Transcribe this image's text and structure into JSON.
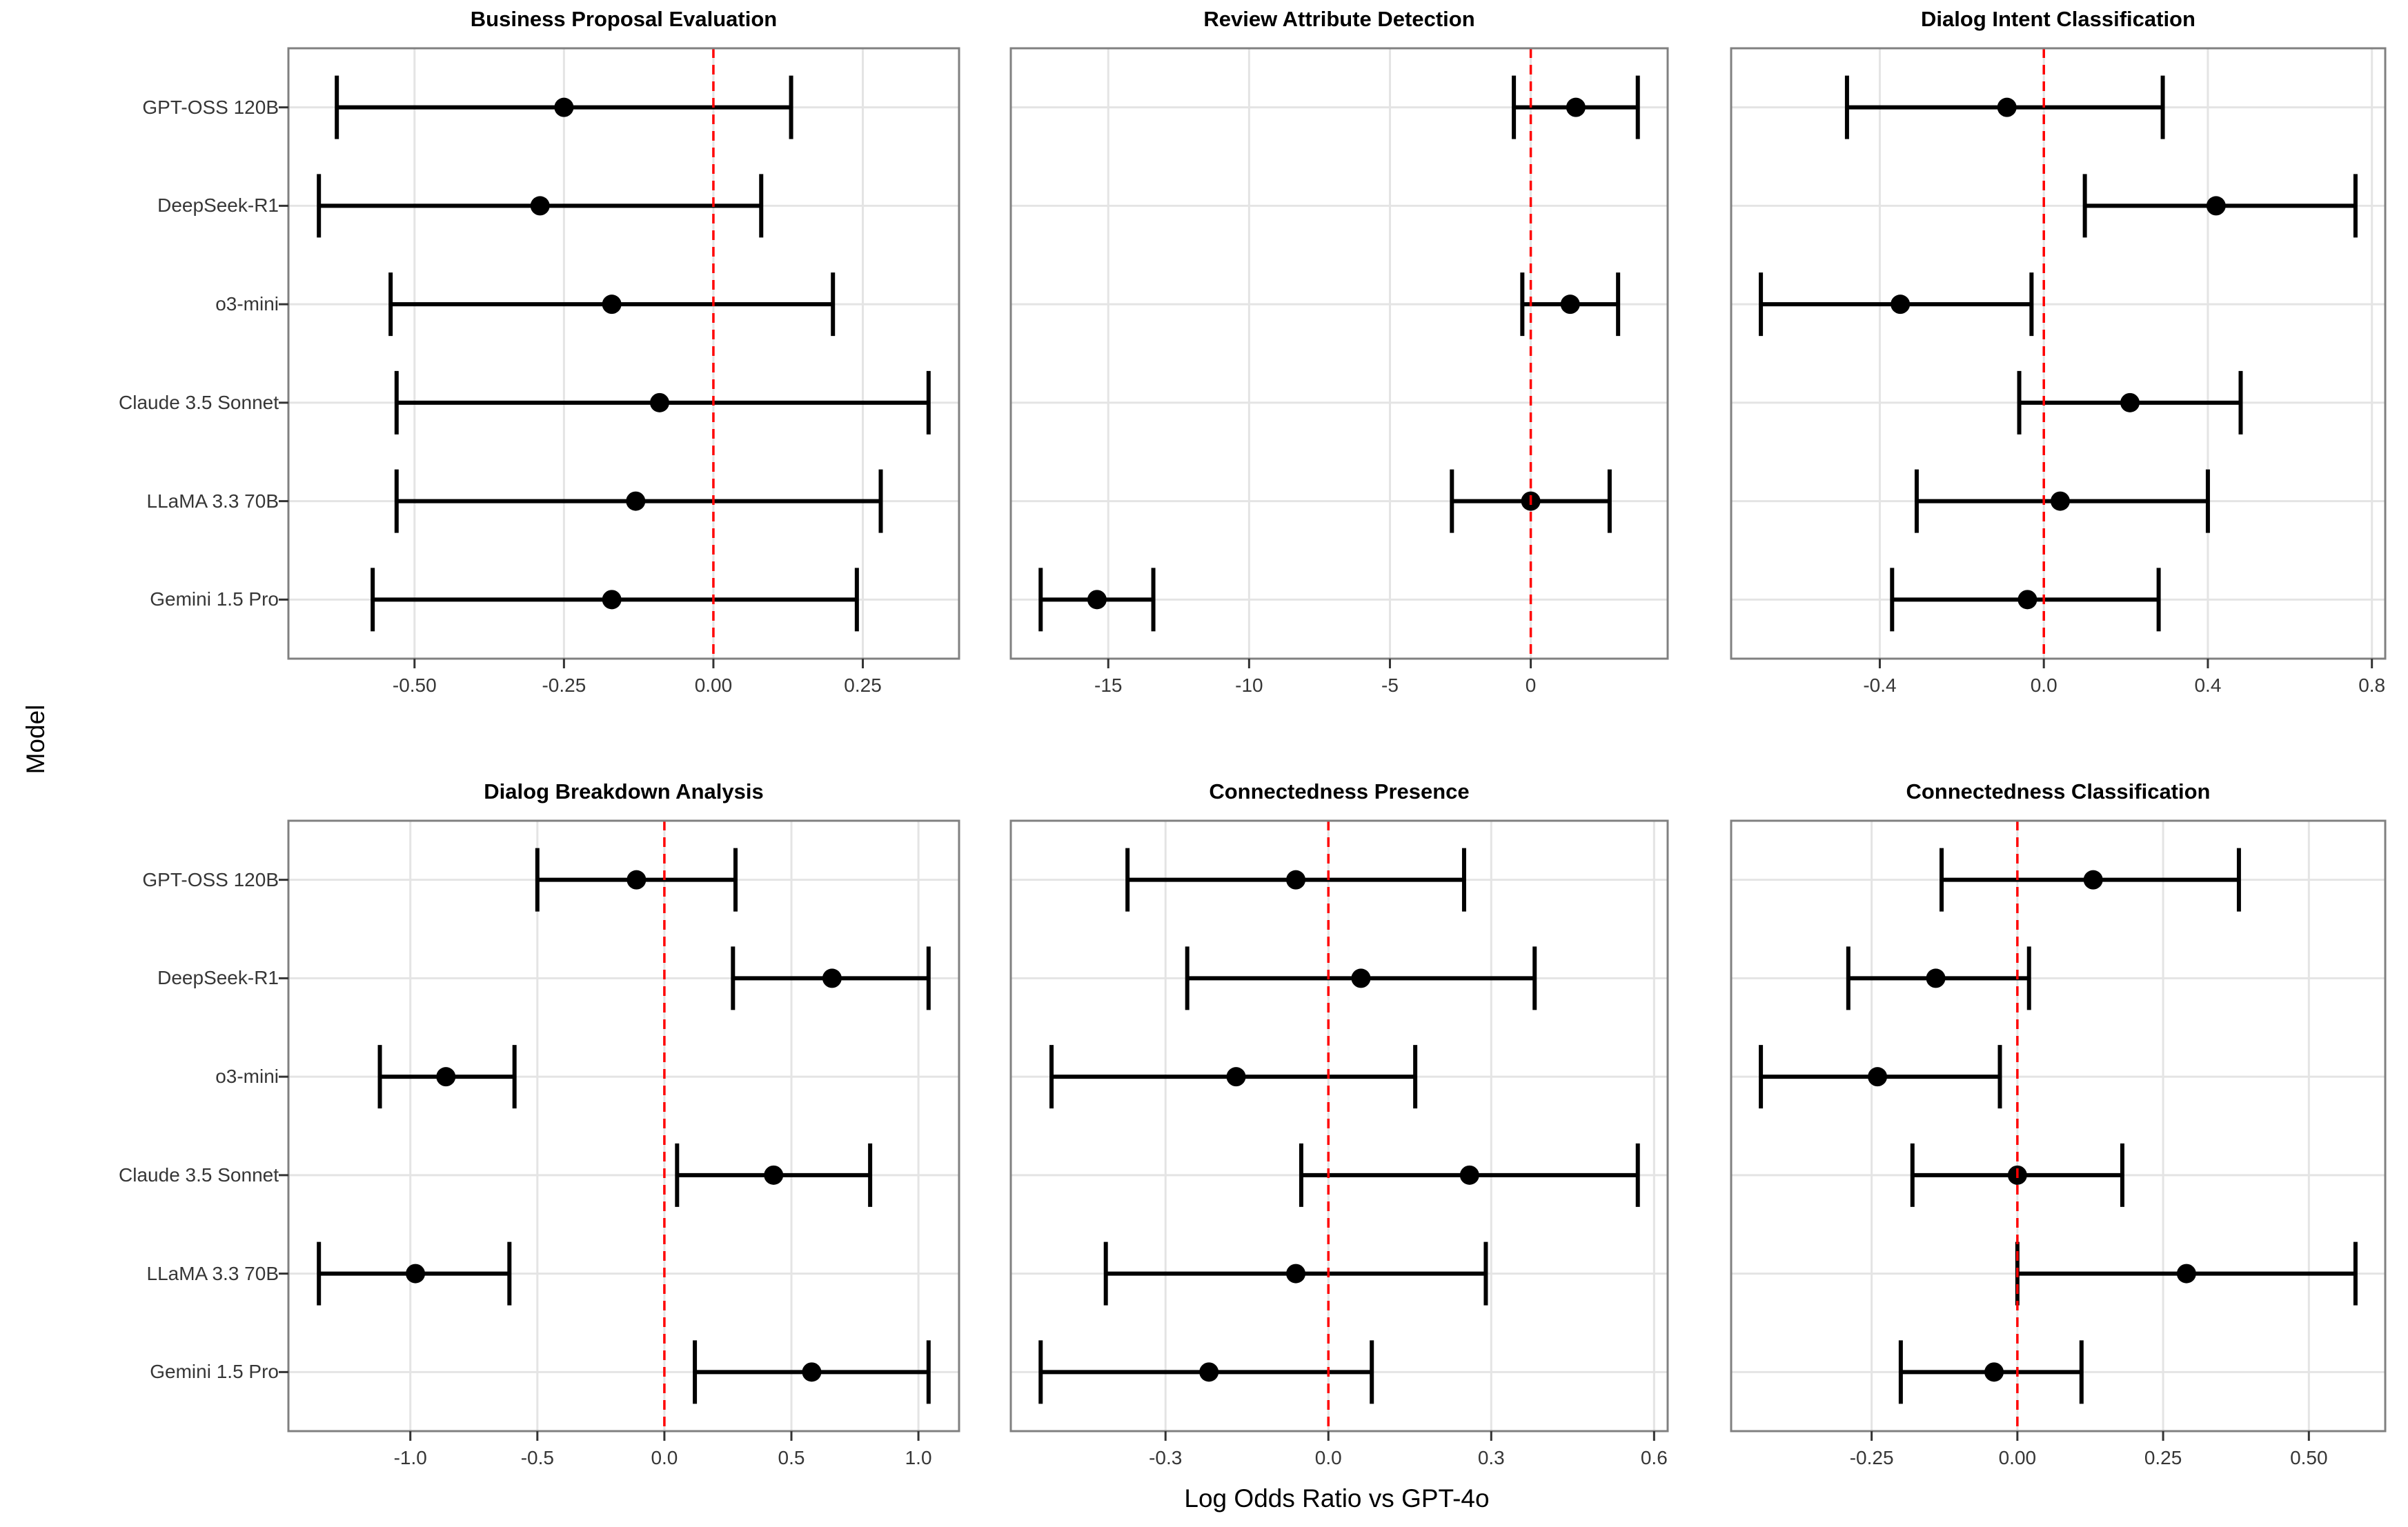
{
  "figure": {
    "kind": "faceted-forest-plot",
    "facet_rows": 2,
    "facet_cols": 3
  },
  "colors": {
    "reference_line": "#FF0000",
    "marker": "#000000",
    "errorbar": "#000000",
    "gridline": "#E4E4E4",
    "panel_border": "#808080",
    "tick_mark": "#333333",
    "tick_text": "#363636",
    "title_text": "#000000"
  },
  "chart_data": {
    "type": "scatter",
    "subtype": "forest-errorbar",
    "xlabel": "Log Odds Ratio vs GPT-4o",
    "ylabel": "Model",
    "reference_line_x": 0,
    "grid": "major-only",
    "legend": "none",
    "categories": [
      "GPT-OSS 120B",
      "DeepSeek-R1",
      "o3-mini",
      "Claude 3.5 Sonnet",
      "LLaMA 3.3 70B",
      "Gemini 1.5 Pro"
    ],
    "panels": [
      {
        "title": "Business Proposal Evaluation",
        "x_ticks": {
          "values": [
            -0.5,
            -0.25,
            0.0,
            0.25
          ],
          "labels": [
            "-0.50",
            "-0.25",
            "0.00",
            "0.25"
          ]
        },
        "estimates": [
          -0.25,
          -0.29,
          -0.17,
          -0.09,
          -0.13,
          -0.17
        ],
        "ci_low": [
          -0.63,
          -0.66,
          -0.54,
          -0.53,
          -0.53,
          -0.57
        ],
        "ci_high": [
          0.13,
          0.08,
          0.2,
          0.36,
          0.28,
          0.24
        ]
      },
      {
        "title": "Review Attribute Detection",
        "x_ticks": {
          "values": [
            -15,
            -10,
            -5,
            0
          ],
          "labels": [
            "-15",
            "-10",
            "-5",
            "0"
          ]
        },
        "estimates": [
          1.6,
          null,
          1.4,
          null,
          0.0,
          -15.4
        ],
        "ci_low": [
          -0.6,
          null,
          -0.3,
          null,
          -2.8,
          -17.4
        ],
        "ci_high": [
          3.8,
          null,
          3.1,
          null,
          2.8,
          -13.4
        ]
      },
      {
        "title": "Dialog Intent Classification",
        "x_ticks": {
          "values": [
            -0.4,
            0.0,
            0.4,
            0.8
          ],
          "labels": [
            "-0.4",
            "0.0",
            "0.4",
            "0.8"
          ]
        },
        "estimates": [
          -0.09,
          0.42,
          -0.35,
          0.21,
          0.04,
          -0.04
        ],
        "ci_low": [
          -0.48,
          0.1,
          -0.69,
          -0.06,
          -0.31,
          -0.37
        ],
        "ci_high": [
          0.29,
          0.76,
          -0.03,
          0.48,
          0.4,
          0.28
        ]
      },
      {
        "title": "Dialog Breakdown Analysis",
        "x_ticks": {
          "values": [
            -1.0,
            -0.5,
            0.0,
            0.5,
            1.0
          ],
          "labels": [
            "-1.0",
            "-0.5",
            "0.0",
            "0.5",
            "1.0"
          ]
        },
        "estimates": [
          -0.11,
          0.66,
          -0.86,
          0.43,
          -0.98,
          0.58
        ],
        "ci_low": [
          -0.5,
          0.27,
          -1.12,
          0.05,
          -1.36,
          0.12
        ],
        "ci_high": [
          0.28,
          1.04,
          -0.59,
          0.81,
          -0.61,
          1.04
        ]
      },
      {
        "title": "Connectedness Presence",
        "x_ticks": {
          "values": [
            -0.3,
            0.0,
            0.3,
            0.6
          ],
          "labels": [
            "-0.3",
            "0.0",
            "0.3",
            "0.6"
          ]
        },
        "estimates": [
          -0.06,
          0.06,
          -0.17,
          0.26,
          -0.06,
          -0.22
        ],
        "ci_low": [
          -0.37,
          -0.26,
          -0.51,
          -0.05,
          -0.41,
          -0.53
        ],
        "ci_high": [
          0.25,
          0.38,
          0.16,
          0.57,
          0.29,
          0.08
        ]
      },
      {
        "title": "Connectedness Classification",
        "x_ticks": {
          "values": [
            -0.25,
            0.0,
            0.25,
            0.5
          ],
          "labels": [
            "-0.25",
            "0.00",
            "0.25",
            "0.50"
          ]
        },
        "estimates": [
          0.13,
          -0.14,
          -0.24,
          0.0,
          0.29,
          -0.04
        ],
        "ci_low": [
          -0.13,
          -0.29,
          -0.44,
          -0.18,
          0.0,
          -0.2
        ],
        "ci_high": [
          0.38,
          0.02,
          -0.03,
          0.18,
          0.58,
          0.11
        ]
      }
    ]
  }
}
